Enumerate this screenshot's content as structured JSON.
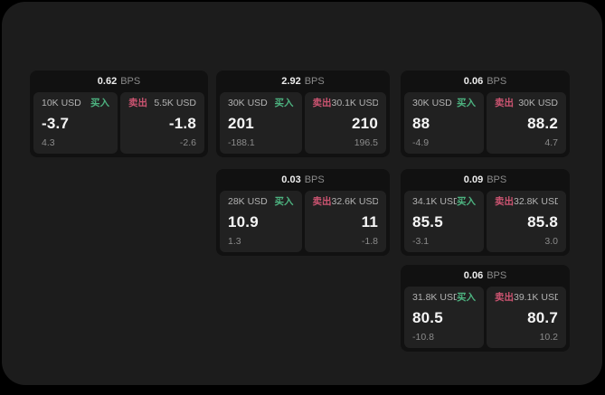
{
  "colors": {
    "page_bg": "#000000",
    "panel_bg": "#1c1c1c",
    "card_bg": "#111111",
    "subcard_bg": "#212121",
    "buy": "#4db380",
    "sell": "#cc5471",
    "price_text": "#f5f5f5",
    "muted_text": "#8b8b8b",
    "amount_text": "#b3b3b3"
  },
  "labels": {
    "bps": "BPS",
    "buy": "买入",
    "sell": "卖出"
  },
  "cards": [
    {
      "bps": "0.62",
      "buy": {
        "amount": "10K USD",
        "price": "-3.7",
        "change": "4.3"
      },
      "sell": {
        "amount": "5.5K USD",
        "price": "-1.8",
        "change": "-2.6"
      }
    },
    {
      "bps": "2.92",
      "buy": {
        "amount": "30K USD",
        "price": "201",
        "change": "-188.1"
      },
      "sell": {
        "amount": "30.1K USD",
        "price": "210",
        "change": "196.5"
      }
    },
    {
      "bps": "0.06",
      "buy": {
        "amount": "30K USD",
        "price": "88",
        "change": "-4.9"
      },
      "sell": {
        "amount": "30K USD",
        "price": "88.2",
        "change": "4.7"
      }
    },
    {
      "bps": "0.03",
      "buy": {
        "amount": "28K USD",
        "price": "10.9",
        "change": "1.3"
      },
      "sell": {
        "amount": "32.6K USD",
        "price": "11",
        "change": "-1.8"
      }
    },
    {
      "bps": "0.09",
      "buy": {
        "amount": "34.1K USD",
        "price": "85.5",
        "change": "-3.1"
      },
      "sell": {
        "amount": "32.8K USD",
        "price": "85.8",
        "change": "3.0"
      }
    },
    {
      "bps": "0.06",
      "buy": {
        "amount": "31.8K USD",
        "price": "80.5",
        "change": "-10.8"
      },
      "sell": {
        "amount": "39.1K USD",
        "price": "80.7",
        "change": "10.2"
      }
    }
  ]
}
